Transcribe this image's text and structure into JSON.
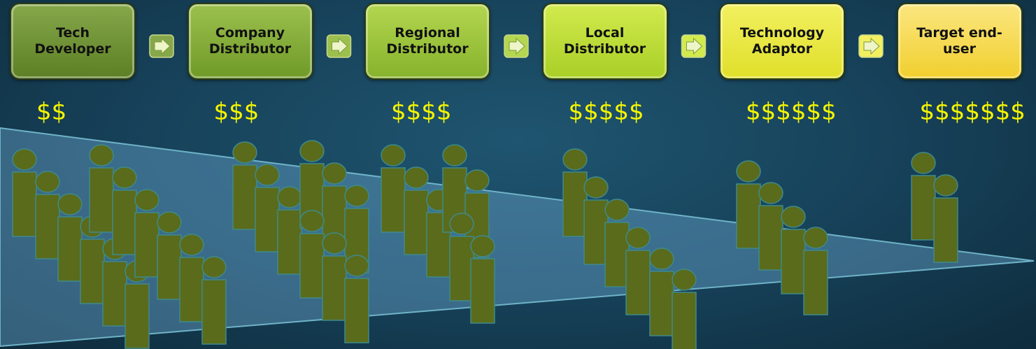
{
  "stages": [
    {
      "label": "Tech Developer",
      "cost": "$$"
    },
    {
      "label": "Company Distributor",
      "cost": "$$$"
    },
    {
      "label": "Regional Distributor",
      "cost": "$$$$"
    },
    {
      "label": "Local Distributor",
      "cost": "$$$$$"
    },
    {
      "label": "Technology Adaptor",
      "cost": "$$$$$$"
    },
    {
      "label": "Target end-user",
      "cost": "$$$$$$$"
    }
  ]
}
